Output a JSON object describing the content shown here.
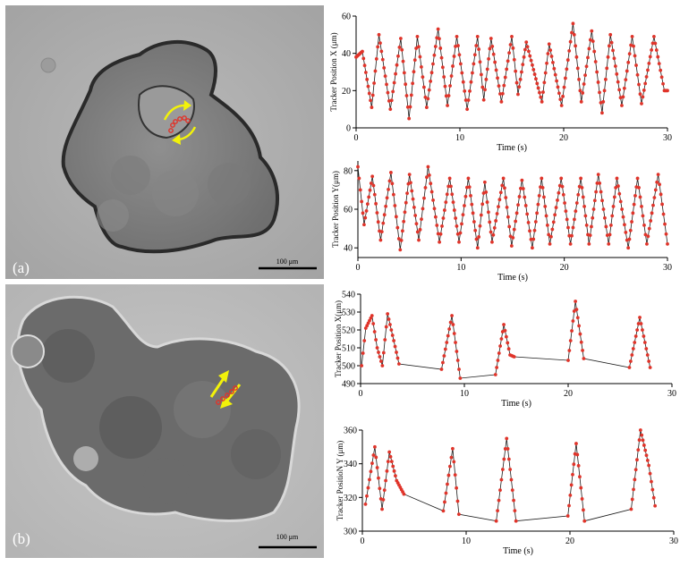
{
  "panels": {
    "a": {
      "label": "(a)",
      "scalebar": "100 μm"
    },
    "b": {
      "label": "(b)",
      "scalebar": "100 μm"
    }
  },
  "colors": {
    "marker": "#e0342a",
    "line": "#1a1a1a",
    "arrow": "#f2f20a"
  },
  "chart_data": [
    {
      "type": "line",
      "panel": "a",
      "xlabel": "Time (s)",
      "ylabel": "Tracker Position X (μm)",
      "xlim": [
        0,
        30
      ],
      "ylim": [
        0,
        60
      ],
      "xticks": [
        0,
        10,
        20,
        30
      ],
      "yticks": [
        0,
        20,
        40,
        60
      ],
      "series": [
        {
          "x": [
            0.0,
            0.6,
            1.5,
            2.2,
            3.3,
            4.3,
            5.1,
            5.9,
            6.8,
            7.9,
            8.8,
            9.7,
            10.7,
            11.7,
            12.3,
            13.0,
            14.0,
            15.0,
            15.6,
            16.4,
            17.9,
            18.6,
            19.8,
            20.9,
            21.7,
            22.7,
            23.7,
            24.5,
            25.6,
            26.6,
            27.5,
            28.7,
            29.7,
            30.0
          ],
          "y": [
            38,
            41,
            11,
            50,
            10,
            48,
            5,
            49,
            11,
            53,
            12,
            49,
            10,
            49,
            15,
            48,
            14,
            49,
            18,
            46,
            14,
            45,
            12,
            56,
            14,
            52,
            8,
            50,
            12,
            49,
            13,
            49,
            20,
            20
          ]
        }
      ]
    },
    {
      "type": "line",
      "panel": "a",
      "xlabel": "Time (s)",
      "ylabel": "Tracker Position Y(μm)",
      "xlim": [
        0,
        30
      ],
      "ylim": [
        35,
        85
      ],
      "xticks": [
        0,
        10,
        20,
        30
      ],
      "yticks": [
        40,
        60,
        80
      ],
      "series": [
        {
          "x": [
            0.0,
            0.6,
            1.4,
            2.2,
            3.2,
            4.1,
            5.0,
            5.9,
            6.8,
            7.9,
            8.9,
            9.8,
            10.7,
            11.6,
            12.3,
            13.0,
            14.1,
            14.9,
            15.9,
            16.9,
            17.8,
            18.6,
            19.7,
            20.6,
            21.6,
            22.4,
            23.3,
            24.3,
            25.1,
            26.2,
            27.1,
            28.0,
            29.1,
            30.0
          ],
          "y": [
            82,
            52,
            77,
            44,
            79,
            39,
            78,
            44,
            82,
            43,
            76,
            43,
            76,
            40,
            74,
            43,
            76,
            41,
            75,
            40,
            76,
            42,
            76,
            42,
            76,
            42,
            78,
            42,
            76,
            40,
            76,
            42,
            78,
            42
          ]
        }
      ]
    },
    {
      "type": "line",
      "panel": "b",
      "xlabel": "Time (s)",
      "ylabel": "Tracker Position X(μm)",
      "xlim": [
        0,
        30
      ],
      "ylim": [
        490,
        540
      ],
      "xticks": [
        0,
        10,
        20,
        30
      ],
      "yticks": [
        490,
        500,
        510,
        520,
        530,
        540
      ],
      "series": [
        {
          "x": [
            0.1,
            0.5,
            1.1,
            1.6,
            2.1,
            2.6,
            3.2,
            3.7,
            7.8,
            8.8,
            9.6,
            13.0,
            13.8,
            14.4,
            14.8,
            20.0,
            20.7,
            21.5,
            25.9,
            26.9,
            27.9
          ],
          "y": [
            500,
            521,
            528,
            510,
            500,
            529,
            514,
            501,
            498,
            528,
            493,
            495,
            523,
            506,
            505,
            503,
            536,
            504,
            499,
            527,
            499
          ]
        }
      ]
    },
    {
      "type": "line",
      "panel": "b",
      "xlabel": "Time (s)",
      "ylabel": "Tracker PositioN Y (μm)",
      "xlim": [
        0,
        30
      ],
      "ylim": [
        300,
        360
      ],
      "xticks": [
        0,
        10,
        20,
        30
      ],
      "yticks": [
        300,
        320,
        340,
        360
      ],
      "series": [
        {
          "x": [
            0.3,
            1.2,
            1.9,
            2.6,
            3.3,
            4.0,
            7.8,
            8.7,
            9.3,
            12.9,
            13.9,
            14.8,
            19.8,
            20.6,
            21.4,
            25.9,
            26.8,
            27.6,
            28.2
          ],
          "y": [
            316,
            350,
            313,
            347,
            330,
            322,
            312,
            349,
            310,
            306,
            355,
            306,
            309,
            352,
            306,
            313,
            360,
            339,
            315
          ]
        }
      ]
    }
  ]
}
